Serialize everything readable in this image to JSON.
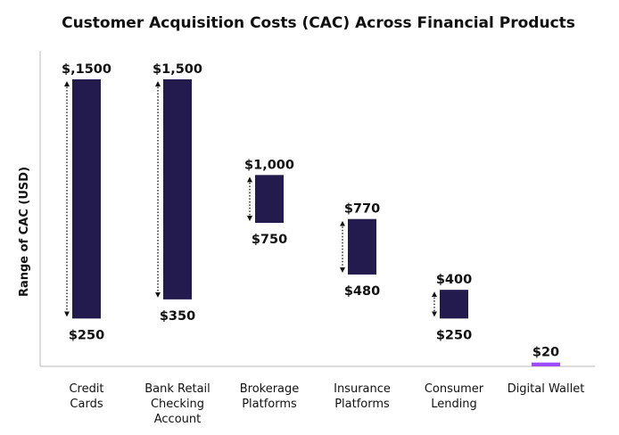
{
  "chart_data": {
    "type": "range-bar",
    "title": "Customer Acquisition Costs (CAC) Across Financial Products",
    "xlabel": "",
    "ylabel": "Range of CAC (USD)",
    "ylim": [
      0,
      1600
    ],
    "grid": false,
    "bar_color": "#231A4E",
    "highlight_color": "#9B4DFF",
    "categories": [
      {
        "lines": [
          "Credit",
          "Cards"
        ],
        "low": 250,
        "high": 1500,
        "low_label": "$250",
        "high_label": "$,1500",
        "arrow": true
      },
      {
        "lines": [
          "Bank Retail",
          "Checking",
          "Account"
        ],
        "low": 350,
        "high": 1500,
        "low_label": "$350",
        "high_label": "$1,500",
        "arrow": true
      },
      {
        "lines": [
          "Brokerage",
          "Platforms"
        ],
        "low": 750,
        "high": 1000,
        "low_label": "$750",
        "high_label": "$1,000",
        "arrow": true
      },
      {
        "lines": [
          "Insurance",
          "Platforms"
        ],
        "low": 480,
        "high": 770,
        "low_label": "$480",
        "high_label": "$770",
        "arrow": true
      },
      {
        "lines": [
          "Consumer",
          "Lending"
        ],
        "low": 250,
        "high": 400,
        "low_label": "$250",
        "high_label": "$400",
        "arrow": true
      },
      {
        "lines": [
          "Digital Wallet"
        ],
        "low": 0,
        "high": 20,
        "low_label": "",
        "high_label": "$20",
        "arrow": false,
        "highlight": true
      }
    ]
  }
}
